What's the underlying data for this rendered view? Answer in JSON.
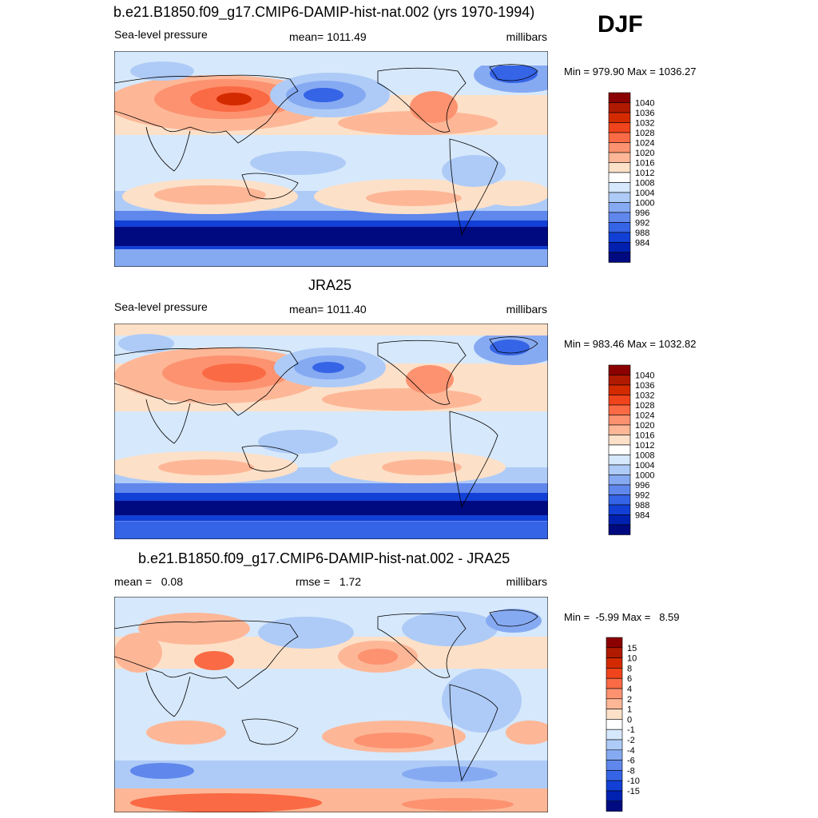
{
  "season": "DJF",
  "panels": [
    {
      "title": "b.e21.B1850.f09_g17.CMIP6-DAMIP-hist-nat.002 (yrs 1970-1994)",
      "left_label": "Sea-level pressure",
      "center_label": "mean= 1011.49",
      "units": "millibars",
      "minmax": "Min = 979.90 Max = 1036.27"
    },
    {
      "title": "JRA25",
      "left_label": "Sea-level pressure",
      "center_label": "mean= 1011.40",
      "units": "millibars",
      "minmax": "Min = 983.46 Max = 1032.82"
    },
    {
      "title": "b.e21.B1850.f09_g17.CMIP6-DAMIP-hist-nat.002 - JRA25",
      "left_label": "mean =   0.08",
      "center_label": "rmse =   1.72",
      "units": "millibars",
      "minmax": "Min =  -5.99 Max =   8.59"
    }
  ],
  "chart_data": [
    {
      "type": "heatmap",
      "title": "b.e21.B1850.f09_g17.CMIP6-DAMIP-hist-nat.002 (yrs 1970-1994)",
      "variable": "Sea-level pressure",
      "units": "millibars",
      "mean": 1011.49,
      "min": 979.9,
      "max": 1036.27,
      "colorbar_labels": [
        "1040",
        "1036",
        "1032",
        "1028",
        "1024",
        "1020",
        "1016",
        "1012",
        "1008",
        "1004",
        "1000",
        "996",
        "992",
        "988",
        "984"
      ],
      "colorbar_colors": [
        "#8b0000",
        "#b01a00",
        "#d42a00",
        "#f0441c",
        "#fa6a44",
        "#fc9270",
        "#fdb797",
        "#fde0c8",
        "#ffffff",
        "#d6e8fb",
        "#aecbf7",
        "#86aaf2",
        "#5f87ec",
        "#3564e6",
        "#1240d6",
        "#0020b0",
        "#000a80"
      ]
    },
    {
      "type": "heatmap",
      "title": "JRA25",
      "variable": "Sea-level pressure",
      "units": "millibars",
      "mean": 1011.4,
      "min": 983.46,
      "max": 1032.82,
      "colorbar_labels": [
        "1040",
        "1036",
        "1032",
        "1028",
        "1024",
        "1020",
        "1016",
        "1012",
        "1008",
        "1004",
        "1000",
        "996",
        "992",
        "988",
        "984"
      ],
      "colorbar_colors": [
        "#8b0000",
        "#b01a00",
        "#d42a00",
        "#f0441c",
        "#fa6a44",
        "#fc9270",
        "#fdb797",
        "#fde0c8",
        "#ffffff",
        "#d6e8fb",
        "#aecbf7",
        "#86aaf2",
        "#5f87ec",
        "#3564e6",
        "#1240d6",
        "#0020b0",
        "#000a80"
      ]
    },
    {
      "type": "heatmap",
      "title": "b.e21.B1850.f09_g17.CMIP6-DAMIP-hist-nat.002 - JRA25",
      "units": "millibars",
      "mean": 0.08,
      "rmse": 1.72,
      "min": -5.99,
      "max": 8.59,
      "colorbar_labels": [
        "15",
        "10",
        "8",
        "6",
        "4",
        "2",
        "1",
        "0",
        "-1",
        "-2",
        "-4",
        "-6",
        "-8",
        "-10",
        "-15"
      ],
      "colorbar_colors": [
        "#8b0000",
        "#b01a00",
        "#d42a00",
        "#f0441c",
        "#fa6a44",
        "#fc9270",
        "#fdb797",
        "#fde0c8",
        "#ffffff",
        "#d6e8fb",
        "#aecbf7",
        "#86aaf2",
        "#5f87ec",
        "#3564e6",
        "#1240d6",
        "#0020b0",
        "#000a80"
      ]
    }
  ]
}
